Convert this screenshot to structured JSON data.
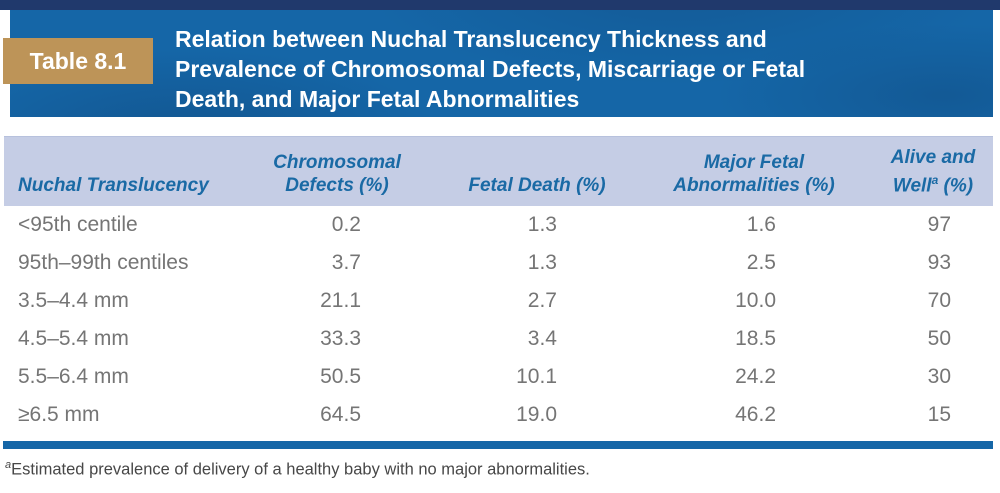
{
  "badge": {
    "label": "Table 8.1"
  },
  "title_lines": [
    "Relation between Nuchal Translucency Thickness and",
    "Prevalence of Chromosomal Defects, Miscarriage or Fetal",
    "Death, and Major Fetal Abnormalities"
  ],
  "table": {
    "columns": [
      {
        "label": "Nuchal Translucency"
      },
      {
        "line1": "Chromosomal",
        "line2": "Defects (%)"
      },
      {
        "label": "Fetal Death (%)"
      },
      {
        "line1": "Major Fetal",
        "line2": "Abnormalities (%)"
      },
      {
        "line1": "Alive and",
        "line2_pre": "Well",
        "sup": "a",
        "line2_post": " (%)"
      }
    ],
    "rows": [
      [
        "<95th centile",
        "0.2",
        "1.3",
        "1.6",
        "97"
      ],
      [
        "95th–99th centiles",
        "3.7",
        "1.3",
        "2.5",
        "93"
      ],
      [
        "3.5–4.4 mm",
        "21.1",
        "2.7",
        "10.0",
        "70"
      ],
      [
        "4.5–5.4 mm",
        "33.3",
        "3.4",
        "18.5",
        "50"
      ],
      [
        "5.5–6.4 mm",
        "50.5",
        "10.1",
        "24.2",
        "30"
      ],
      [
        "≥6.5 mm",
        "64.5",
        "19.0",
        "46.2",
        "15"
      ]
    ]
  },
  "footnote": {
    "sup": "a",
    "text": "Estimated prevalence of delivery of a healthy baby with no major abnormalities."
  },
  "colors": {
    "top_strip_navy": "#20396c",
    "band_blue": "#1566a7",
    "badge_tan": "#bd9458",
    "header_row_bg": "#c5cde5",
    "header_text_blue": "#1a6aa5",
    "body_text_gray": "#757575"
  }
}
